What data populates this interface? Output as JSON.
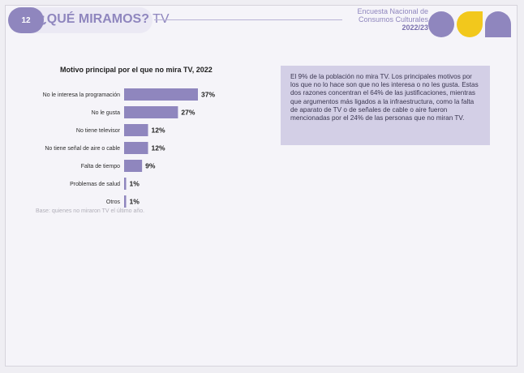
{
  "header": {
    "page_number": "12",
    "title_bold": "¿QUÉ MIRAMOS?",
    "title_light": "TV",
    "survey_line1": "Encuesta Nacional de",
    "survey_line2": "Consumos Culturales",
    "survey_year": "2022/23"
  },
  "colors": {
    "accent": "#8f86be",
    "bar": "#8f86be",
    "yellow": "#f2c81c",
    "info_box": "#d3cfe6"
  },
  "chart_data": {
    "type": "bar",
    "orientation": "horizontal",
    "title": "Motivo principal por el que no mira TV, 2022",
    "categories": [
      "No le interesa la programación",
      "No le gusta",
      "No tiene televisor",
      "No tiene señal de aire o cable",
      "Falta de tiempo",
      "Problemas de salud",
      "Otros"
    ],
    "values": [
      37,
      27,
      12,
      12,
      9,
      1,
      1
    ],
    "value_labels": [
      "37%",
      "27%",
      "12%",
      "12%",
      "9%",
      "1%",
      "1%"
    ],
    "unit": "%",
    "xlim": [
      0,
      37
    ],
    "grid": false,
    "legend": "none"
  },
  "chart_note": "Base: quienes no miraron TV el último año.",
  "info_text": "El 9% de la población no mira TV. Los principales motivos por los que no lo hace son que no les interesa o no les gusta. Estas dos razones concentran el 64% de las justificaciones, mientras que argumentos más ligados a la infraestructura, como la falta de aparato de TV o de señales de cable o aire fueron mencionadas por el 24% de las personas que no miran TV."
}
